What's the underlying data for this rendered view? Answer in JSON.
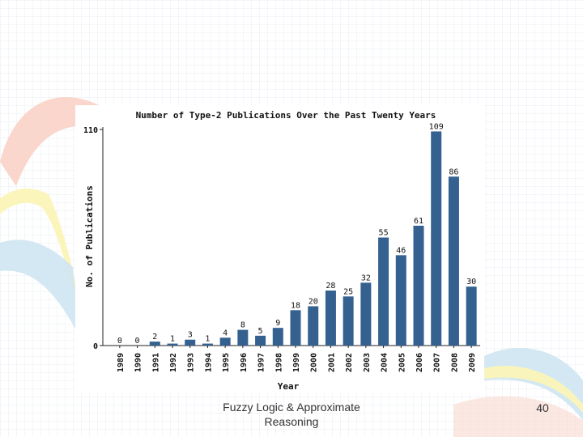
{
  "slide": {
    "footer": "Fuzzy Logic & Approximate Reasoning",
    "page_number": "40"
  },
  "colors": {
    "bar": "#34618f",
    "text": "#111111"
  },
  "chart_data": {
    "type": "bar",
    "title": "Number of Type-2 Publications Over the Past Twenty Years",
    "xlabel": "Year",
    "ylabel": "No. of Publications",
    "ylim": [
      0,
      110
    ],
    "yticks": [
      "110",
      "0"
    ],
    "grid": false,
    "categories": [
      "1989",
      "1990",
      "1991",
      "1992",
      "1993",
      "1994",
      "1995",
      "1996",
      "1997",
      "1998",
      "1999",
      "2000",
      "2001",
      "2002",
      "2003",
      "2004",
      "2005",
      "2006",
      "2007",
      "2008",
      "2009"
    ],
    "values": [
      0,
      0,
      2,
      1,
      3,
      1,
      4,
      8,
      5,
      9,
      18,
      20,
      28,
      25,
      32,
      55,
      46,
      61,
      109,
      86,
      30
    ],
    "value_labels": [
      "0",
      "0",
      "2",
      "1",
      "3",
      "1",
      "4",
      "8",
      "5",
      "9",
      "18",
      "20",
      "28",
      "25",
      "32",
      "55",
      "46",
      "61",
      "109",
      "86",
      "30"
    ]
  }
}
